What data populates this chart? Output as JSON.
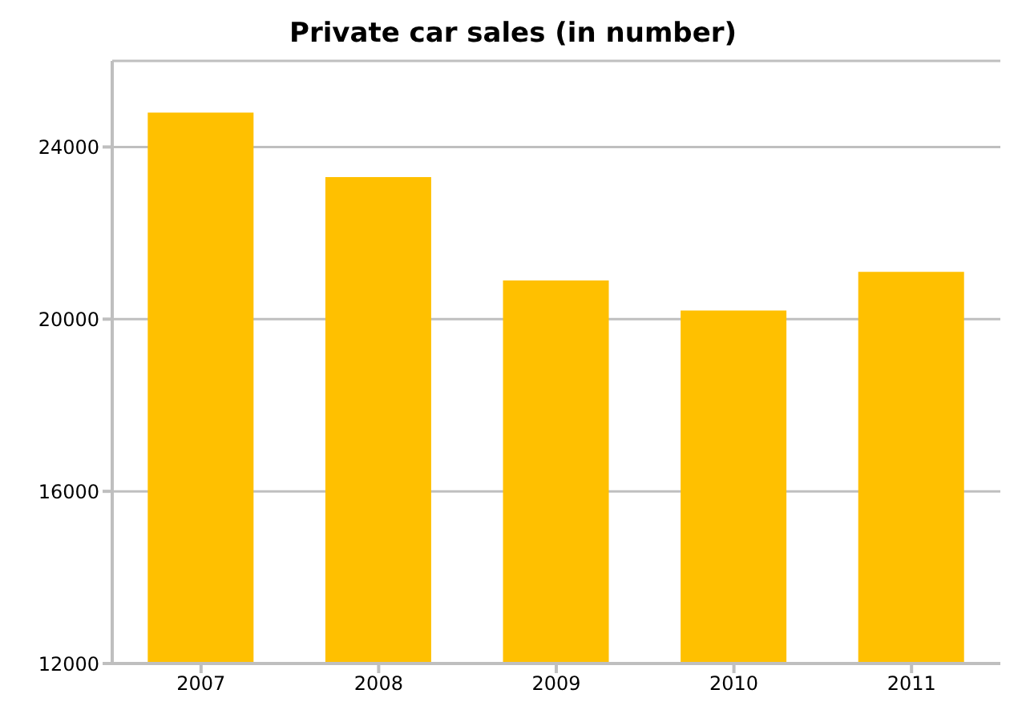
{
  "chart_data": {
    "type": "bar",
    "title": "Private car sales (in number)",
    "categories": [
      "2007",
      "2008",
      "2009",
      "2010",
      "2011"
    ],
    "values": [
      24800,
      23300,
      20900,
      20200,
      21100
    ],
    "color": "#ffc000",
    "ylim": [
      12000,
      26000
    ],
    "yticks": [
      12000,
      16000,
      20000,
      24000
    ],
    "grid": "y"
  }
}
